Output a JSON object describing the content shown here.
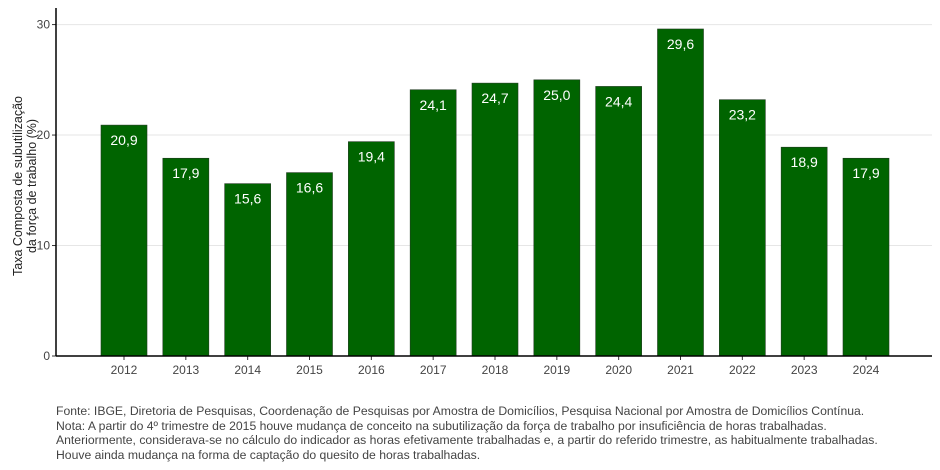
{
  "chart_data": {
    "type": "bar",
    "categories": [
      "2012",
      "2013",
      "2014",
      "2015",
      "2016",
      "2017",
      "2018",
      "2019",
      "2020",
      "2021",
      "2022",
      "2023",
      "2024"
    ],
    "values": [
      20.9,
      17.9,
      15.6,
      16.6,
      19.4,
      24.1,
      24.7,
      25.0,
      24.4,
      29.6,
      23.2,
      18.9,
      17.9
    ],
    "data_labels": [
      "20,9",
      "17,9",
      "15,6",
      "16,6",
      "19,4",
      "24,1",
      "24,7",
      "25,0",
      "24,4",
      "29,6",
      "23,2",
      "18,9",
      "17,9"
    ],
    "ylabel_lines": [
      "Taxa Composta de subutilização",
      "da força de trabalho (%)"
    ],
    "yticks": [
      0,
      10,
      20,
      30
    ],
    "ylim": [
      0,
      31.5
    ],
    "grid": "horizontal",
    "bar_color": "#006400",
    "label_color": "#ffffff"
  },
  "footnote": {
    "lines": [
      "Fonte: IBGE, Diretoria de Pesquisas, Coordenação de Pesquisas por Amostra de Domicílios, Pesquisa Nacional por Amostra de Domicílios Contínua.",
      "Nota: A partir do 4º trimestre de 2015 houve mudança de conceito na subutilização da força de trabalho por insuficiência de horas trabalhadas.",
      "Anteriormente, considerava-se no cálculo do indicador as horas efetivamente trabalhadas e, a partir do referido trimestre, as habitualmente trabalhadas.",
      "Houve ainda mudança na forma de captação do quesito de horas trabalhadas."
    ]
  }
}
